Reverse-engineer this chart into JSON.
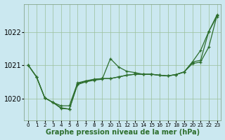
{
  "background_color": "#cbe8f0",
  "plot_bg_color": "#cbe8f0",
  "grid_color": "#9bbf9b",
  "line_color": "#2d6e2d",
  "xlabel": "Graphe pression niveau de la mer (hPa)",
  "xlabel_fontsize": 7,
  "ylim": [
    1019.35,
    1022.85
  ],
  "xlim": [
    -0.5,
    23.5
  ],
  "yticks": [
    1020,
    1021,
    1022
  ],
  "xticks": [
    0,
    1,
    2,
    3,
    4,
    5,
    6,
    7,
    8,
    9,
    10,
    11,
    12,
    13,
    14,
    15,
    16,
    17,
    18,
    19,
    20,
    21,
    22,
    23
  ],
  "series": [
    [
      1021.0,
      1020.65,
      1020.0,
      1019.85,
      1019.75,
      1019.75,
      1020.45,
      1020.52,
      1020.57,
      1020.6,
      1020.6,
      1020.65,
      1020.7,
      1020.72,
      1020.72,
      1020.72,
      1020.7,
      1020.68,
      1020.72,
      1020.8,
      1021.05,
      1021.1,
      1021.55,
      1022.5
    ],
    [
      1021.0,
      1020.65,
      1020.0,
      1019.85,
      1019.75,
      1019.75,
      1020.45,
      1020.52,
      1020.57,
      1020.6,
      1021.2,
      1020.95,
      1020.8,
      1020.75,
      1020.72,
      1020.72,
      1020.7,
      1020.68,
      1020.72,
      1020.8,
      1021.1,
      1021.15,
      1022.0,
      1022.5
    ],
    [
      1021.0,
      1020.65,
      1020.0,
      1019.85,
      1019.75,
      1019.75,
      1020.45,
      1020.52,
      1020.57,
      1020.6,
      1020.6,
      1020.65,
      1020.7,
      1020.72,
      1020.72,
      1020.72,
      1020.7,
      1020.68,
      1020.72,
      1020.8,
      1021.1,
      1021.45,
      1022.0,
      1022.45
    ]
  ],
  "series2": [
    [
      1021.0,
      1020.65,
      1020.0,
      1019.85,
      1019.75,
      1019.75,
      1020.45,
      1020.52,
      1020.57,
      1020.6,
      1020.6,
      1020.65,
      1020.7,
      1020.72,
      1020.72,
      1020.72,
      1020.7,
      1020.68,
      1020.72,
      1020.8,
      1021.1,
      1021.45,
      1022.0,
      1022.45
    ]
  ]
}
